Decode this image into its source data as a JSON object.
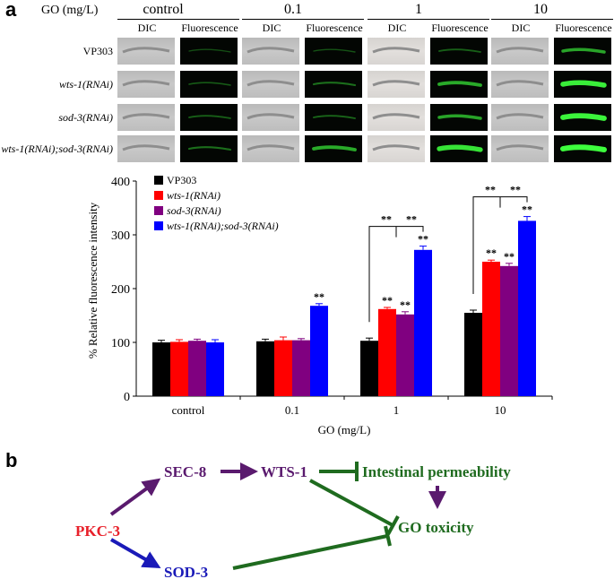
{
  "panel_a": {
    "label": "a",
    "go_header": "GO (mg/L)",
    "groups": [
      {
        "label": "control",
        "fluor": [
          0.05,
          0.12,
          0.15,
          0.22
        ]
      },
      {
        "label": "0.1",
        "fluor": [
          0.08,
          0.22,
          0.18,
          0.55
        ]
      },
      {
        "label": "1",
        "fluor": [
          0.15,
          0.55,
          0.5,
          0.85
        ]
      },
      {
        "label": "10",
        "fluor": [
          0.5,
          0.9,
          0.95,
          1.0
        ]
      }
    ],
    "col_labels": {
      "dic": "DIC",
      "fluorescence": "Fluorescence"
    },
    "rows": [
      {
        "label": "VP303",
        "italic": false
      },
      {
        "label": "wts-1(RNAi)",
        "italic": true
      },
      {
        "label": "sod-3(RNAi)",
        "italic": true
      },
      {
        "label": "wts-1(RNAi);sod-3(RNAi)",
        "italic": true
      }
    ]
  },
  "chart_data": {
    "type": "bar",
    "ylabel": "% Relative fluorescence intensity",
    "xlabel": "GO (mg/L)",
    "ylim": [
      0,
      400
    ],
    "yticks": [
      0,
      100,
      200,
      300,
      400
    ],
    "categories": [
      "control",
      "0.1",
      "1",
      "10"
    ],
    "series": [
      {
        "name": "VP303",
        "italic": false,
        "color": "#000000",
        "values": [
          100,
          102,
          103,
          155
        ],
        "errors": [
          4,
          4,
          5,
          5
        ],
        "sig": [
          "",
          "",
          "",
          ""
        ]
      },
      {
        "name": "wts-1(RNAi)",
        "italic": true,
        "color": "#ff0000",
        "values": [
          101,
          104,
          162,
          250
        ],
        "errors": [
          4,
          6,
          3,
          3
        ],
        "sig": [
          "",
          "",
          "**",
          "**"
        ]
      },
      {
        "name": "sod-3(RNAi)",
        "italic": true,
        "color": "#800080",
        "values": [
          103,
          104,
          152,
          242
        ],
        "errors": [
          3,
          3,
          5,
          5
        ],
        "sig": [
          "",
          "",
          "**",
          "**"
        ]
      },
      {
        "name": "wts-1(RNAi);sod-3(RNAi)",
        "italic": true,
        "color": "#0000ff",
        "values": [
          100,
          168,
          272,
          326
        ],
        "errors": [
          5,
          4,
          7,
          8
        ],
        "sig": [
          "",
          "**",
          "**",
          "**"
        ]
      }
    ],
    "comparisons": [
      {
        "category": "1",
        "labels": [
          "**",
          "**"
        ]
      },
      {
        "category": "10",
        "labels": [
          "**",
          "**"
        ]
      }
    ],
    "legend_position": "top-left"
  },
  "panel_b": {
    "label": "b",
    "nodes": {
      "pkc3": {
        "label": "PKC-3",
        "color": "#e8202a"
      },
      "sec8": {
        "label": "SEC-8",
        "color": "#5a1a6e"
      },
      "wts1": {
        "label": "WTS-1",
        "color": "#5a1a6e"
      },
      "sod3": {
        "label": "SOD-3",
        "color": "#1a1ab8"
      },
      "perm": {
        "label": "Intestinal permeability",
        "color": "#1f6b1f"
      },
      "tox": {
        "label": "GO toxicity",
        "color": "#1f6b1f"
      }
    }
  }
}
